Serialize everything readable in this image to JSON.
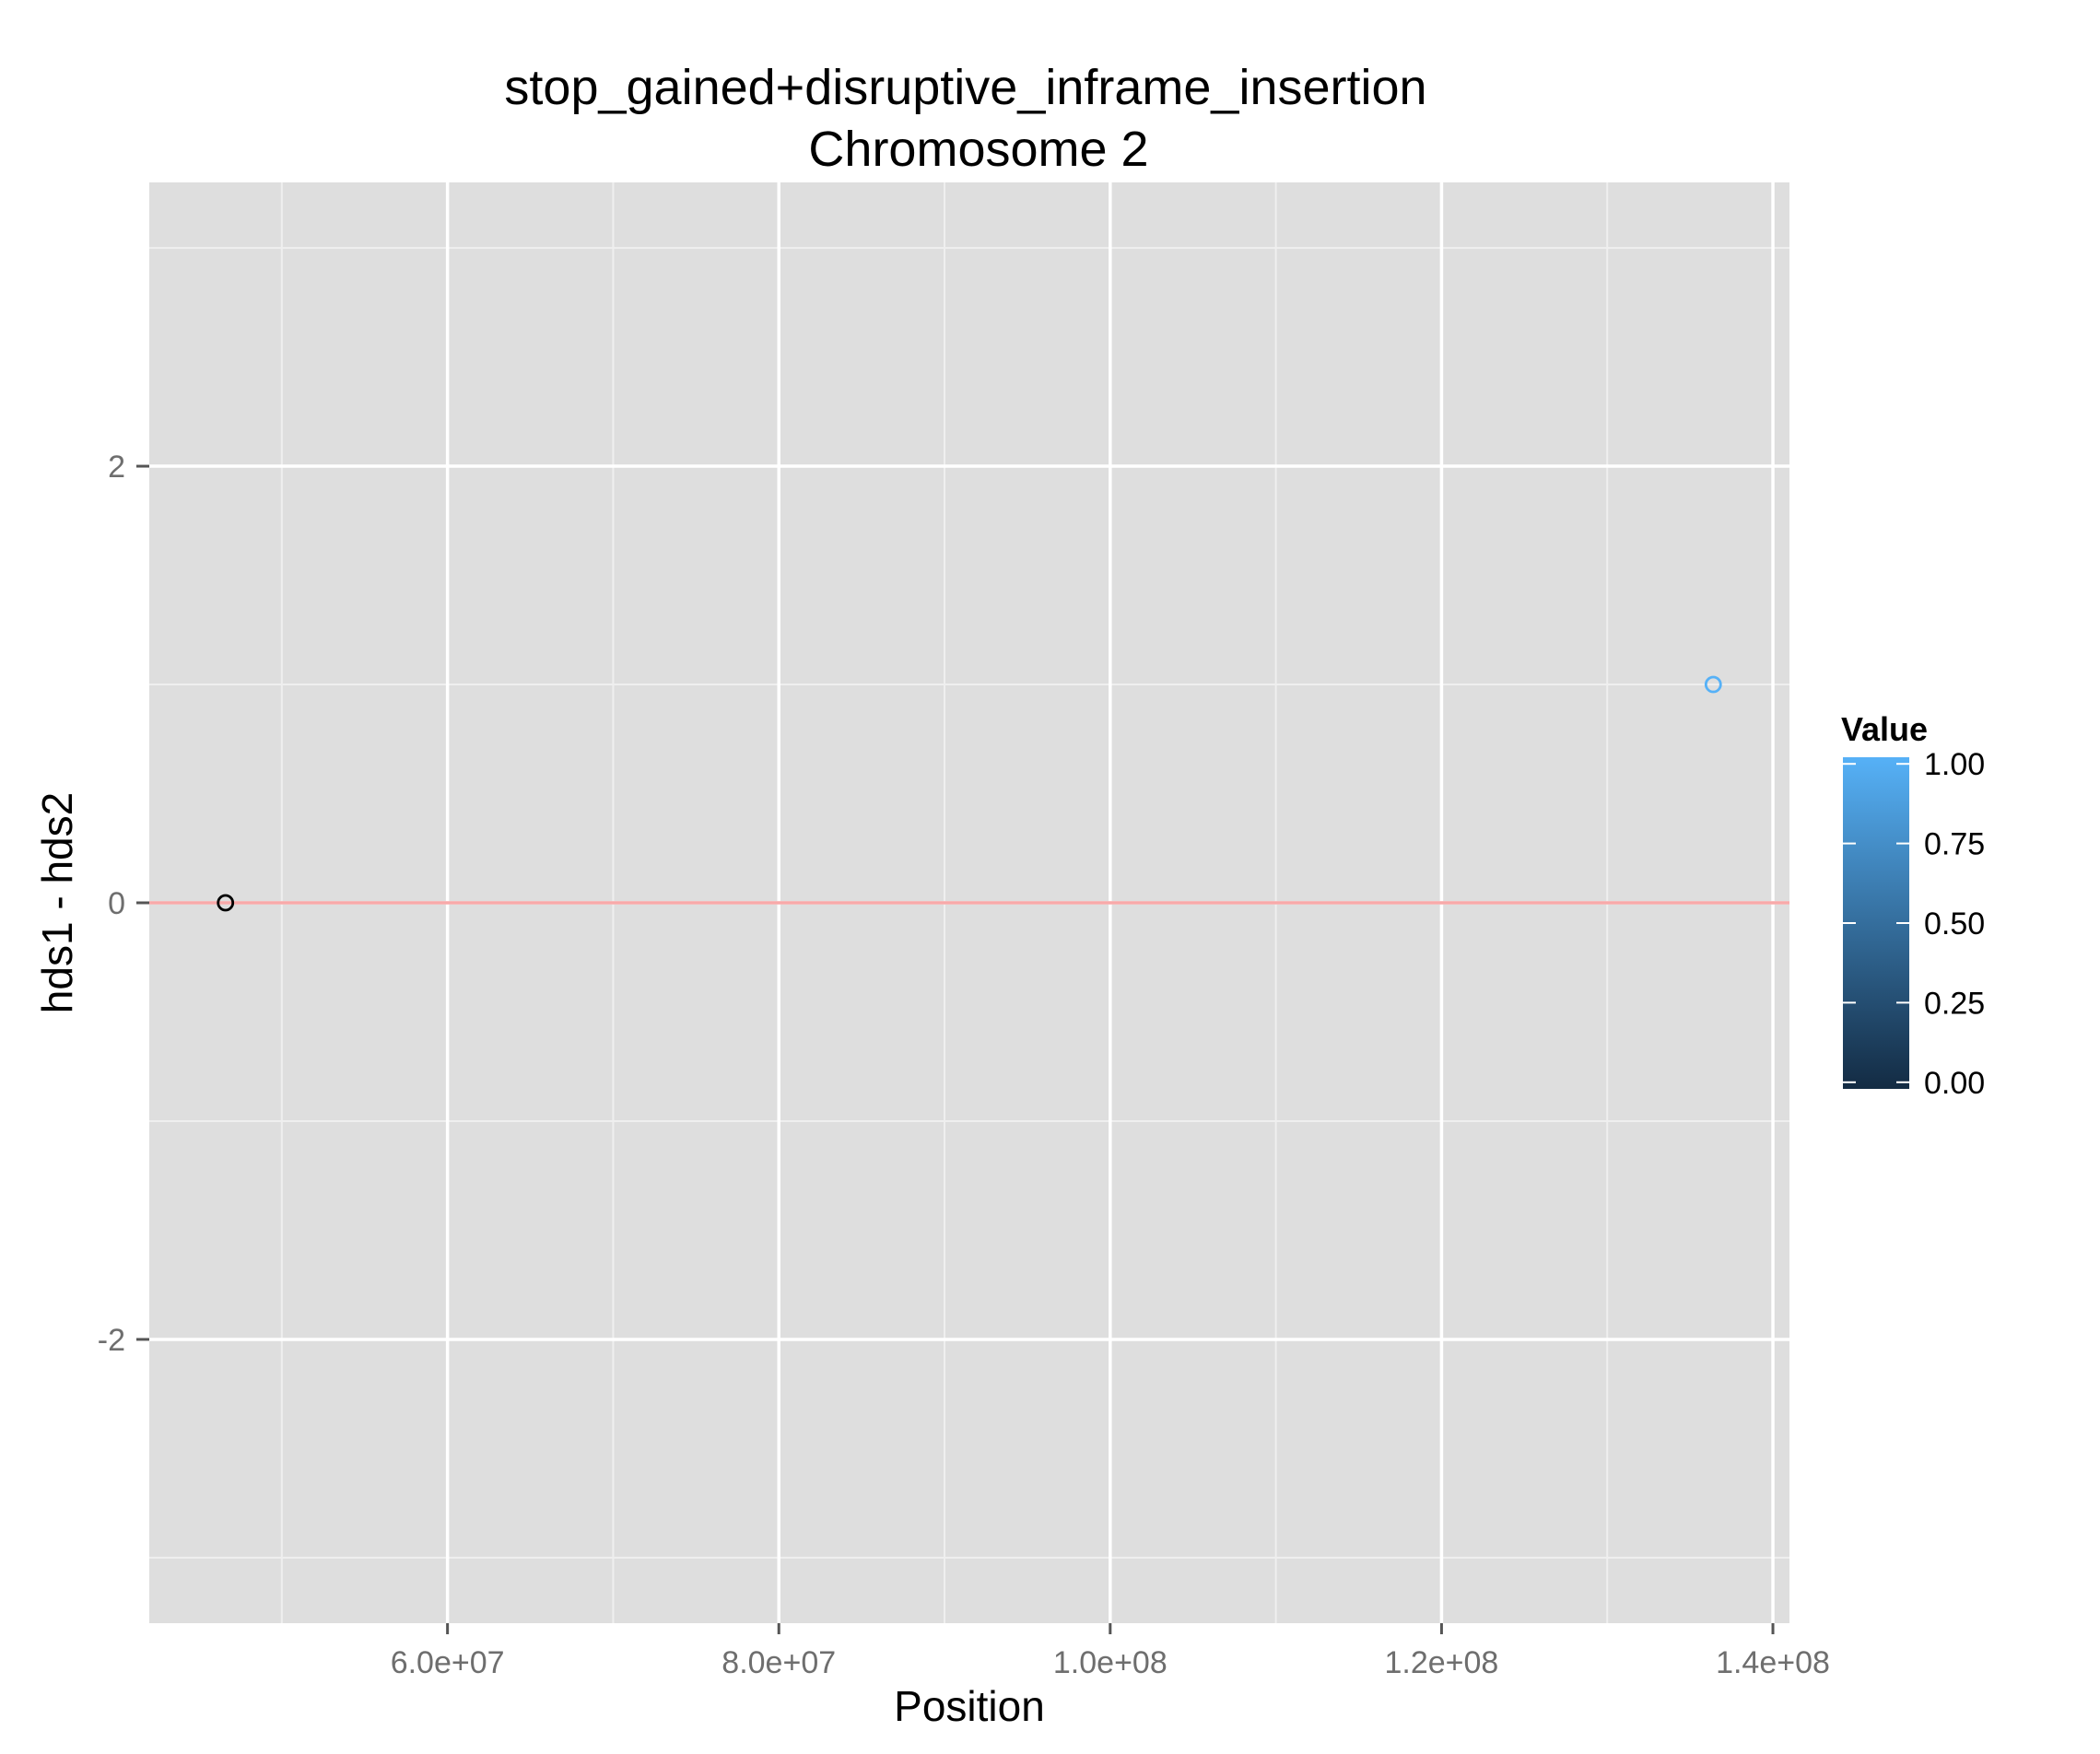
{
  "chart_data": {
    "type": "scatter",
    "title": "stop_gained+disruptive_inframe_insertion",
    "subtitle": "Chromosome 2",
    "xlabel": "Position",
    "ylabel": "hds1 - hds2",
    "xlim": [
      42000000,
      141000000
    ],
    "ylim": [
      -3.3,
      3.3
    ],
    "x_ticks": [
      {
        "value": 60000000,
        "label": "6.0e+07"
      },
      {
        "value": 80000000,
        "label": "8.0e+07"
      },
      {
        "value": 100000000,
        "label": "1.0e+08"
      },
      {
        "value": 120000000,
        "label": "1.2e+08"
      },
      {
        "value": 140000000,
        "label": "1.4e+08"
      }
    ],
    "y_ticks": [
      {
        "value": -2,
        "label": "-2"
      },
      {
        "value": 0,
        "label": "0"
      },
      {
        "value": 2,
        "label": "2"
      }
    ],
    "reference_line": {
      "y": 0,
      "color": "#f8a9a9"
    },
    "grid": true,
    "background": "#dedede",
    "points": [
      {
        "x": 46600000,
        "y": 0,
        "value": 0
      },
      {
        "x": 136400000,
        "y": 1,
        "value": 1
      }
    ],
    "legend": {
      "title": "Value",
      "position": "right",
      "type": "colorbar",
      "ticks": [
        {
          "value": 1.0,
          "label": "1.00"
        },
        {
          "value": 0.75,
          "label": "0.75"
        },
        {
          "value": 0.5,
          "label": "0.50"
        },
        {
          "value": 0.25,
          "label": "0.25"
        },
        {
          "value": 0.0,
          "label": "0.00"
        }
      ],
      "color_low": "#132b43",
      "color_high": "#56b1f7"
    }
  }
}
